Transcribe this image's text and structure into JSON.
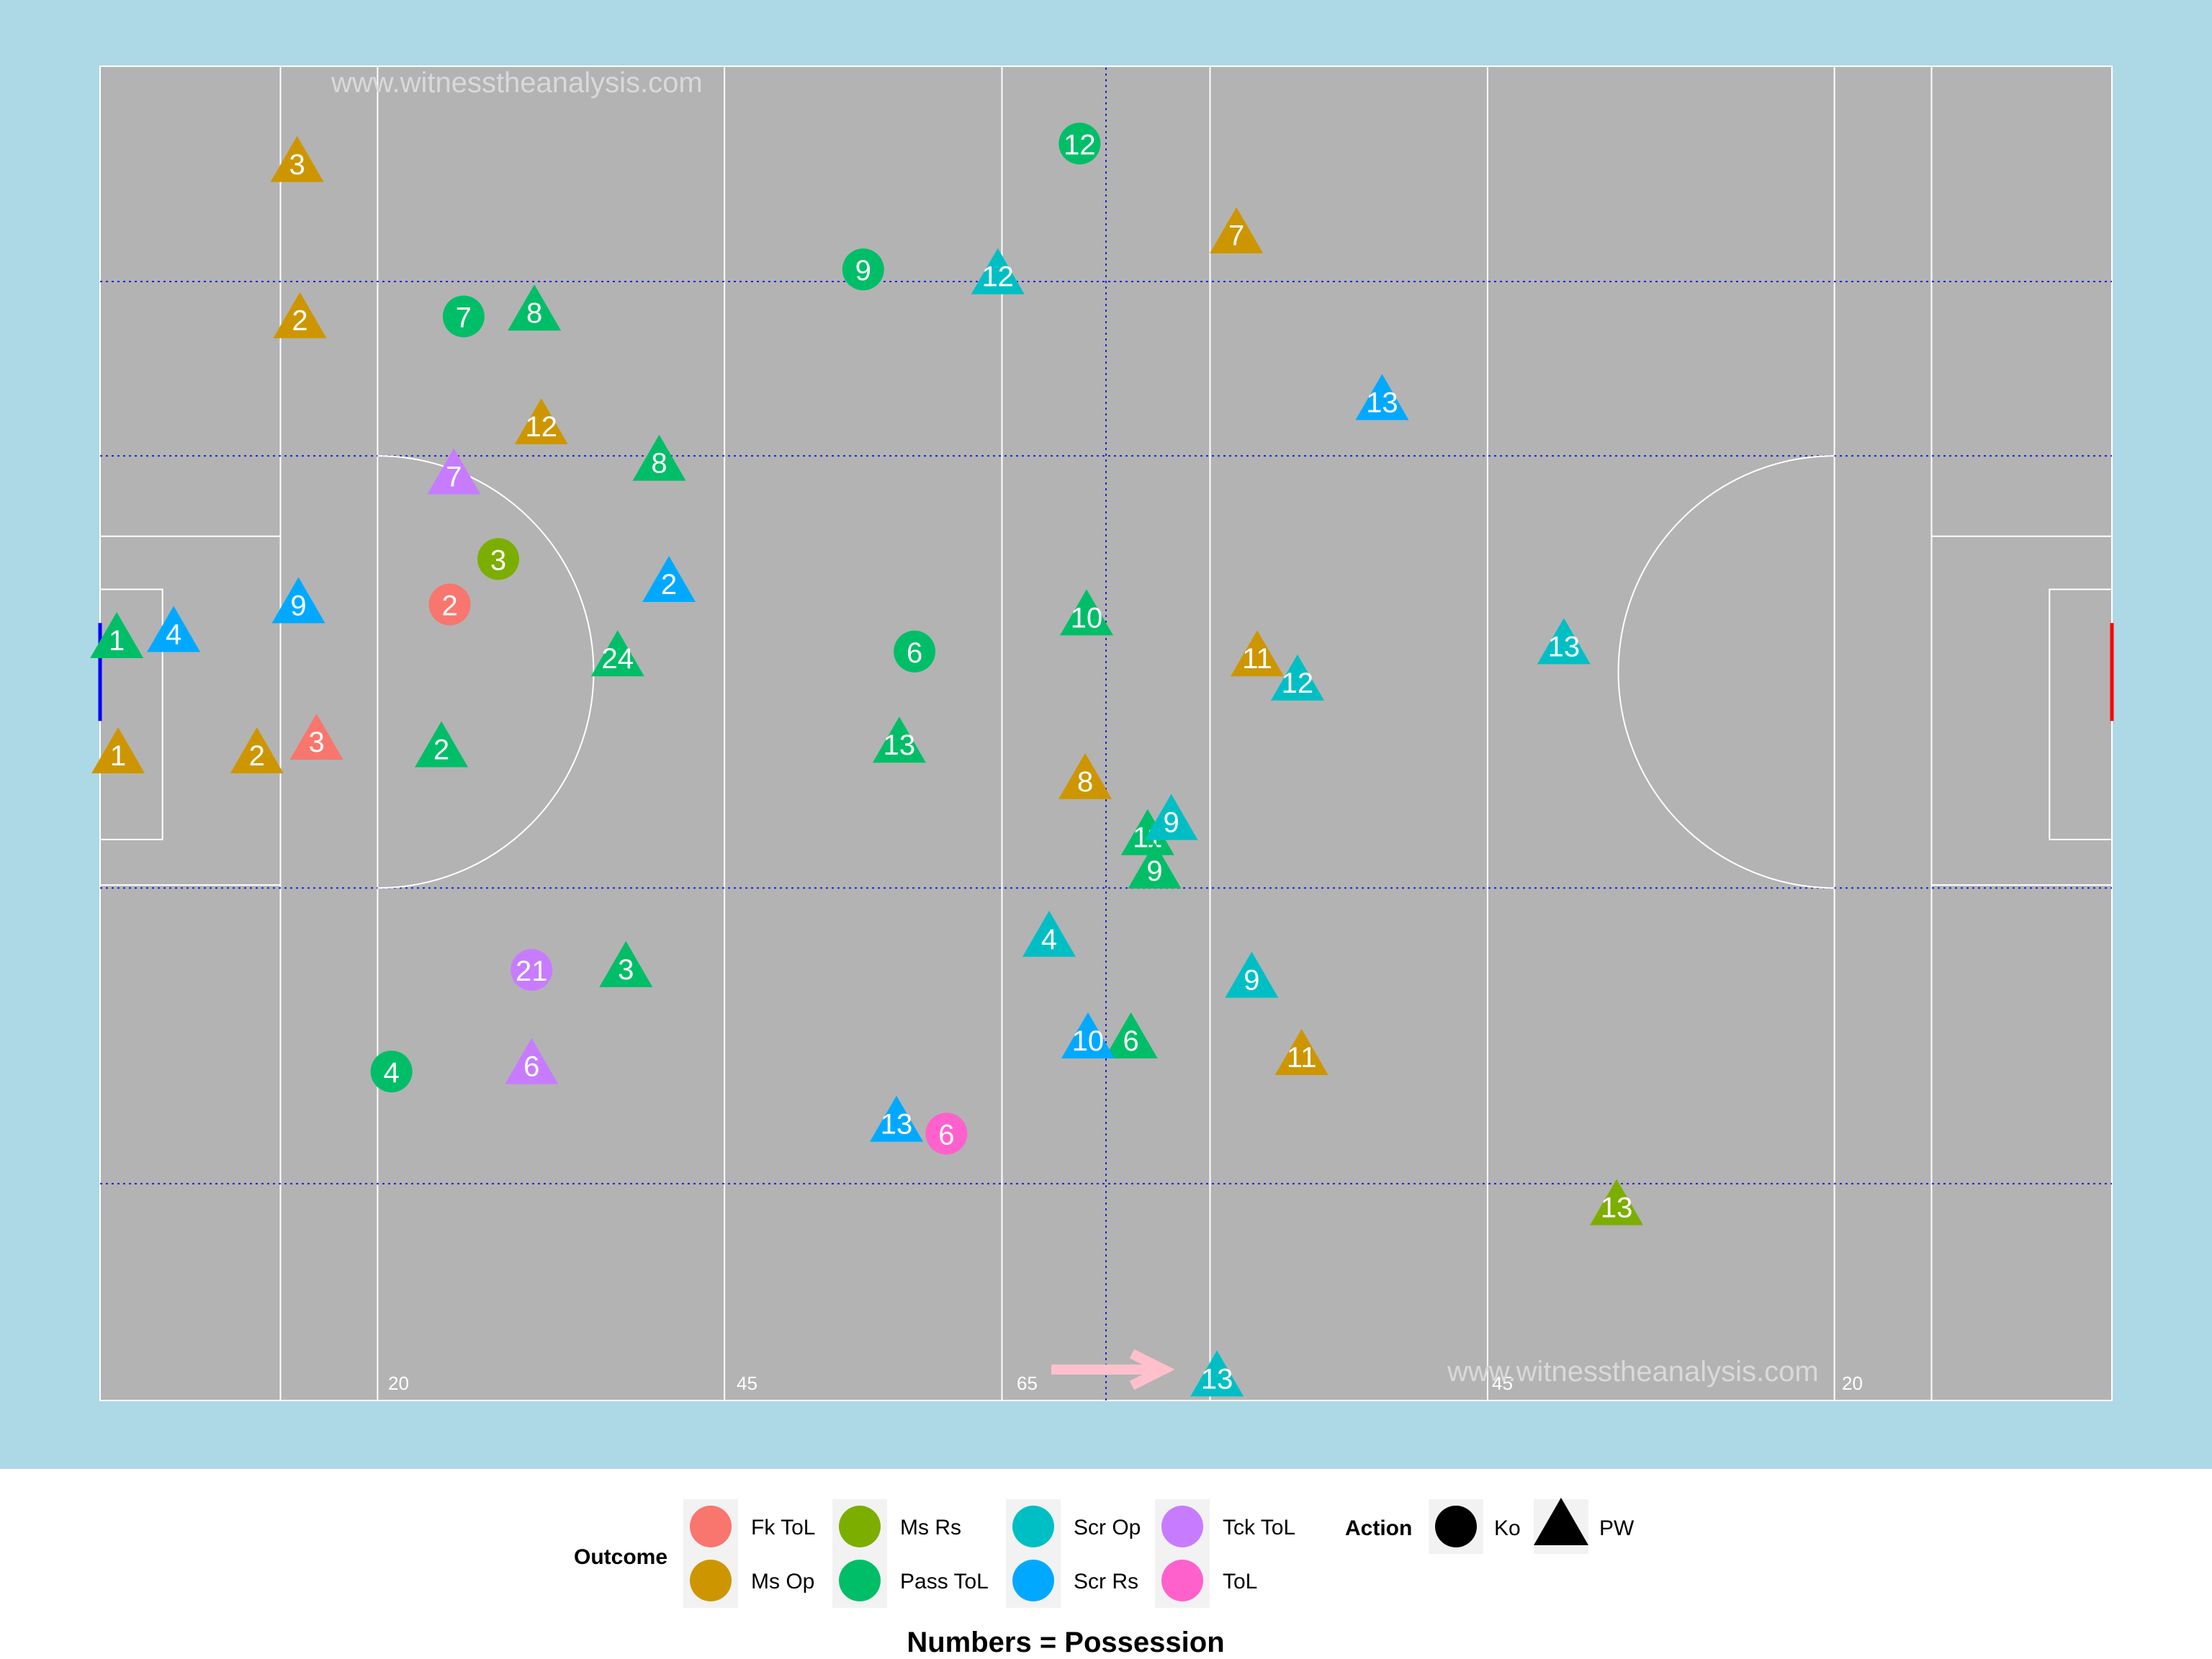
{
  "watermark_text": "www.witnesstheanalysis.com",
  "pitch_labels": [
    "20",
    "45",
    "65",
    "45",
    "20"
  ],
  "chart_data": {
    "type": "scatter",
    "title": "",
    "xlabel": "",
    "ylabel": "",
    "caption": "Numbers = Possession",
    "xlim": [
      0,
      145
    ],
    "ylim": [
      0,
      88
    ],
    "grid": false,
    "legend": {
      "placement": "bottom",
      "outcome_title": "Outcome",
      "outcome": [
        {
          "label": "Fk ToL",
          "color": "#F8766D"
        },
        {
          "label": "Ms Op",
          "color": "#CD9600"
        },
        {
          "label": "Ms Rs",
          "color": "#7CAE00"
        },
        {
          "label": "Pass ToL",
          "color": "#00BE67"
        },
        {
          "label": "Scr Op",
          "color": "#00BFC4"
        },
        {
          "label": "Scr Rs",
          "color": "#00A9FF"
        },
        {
          "label": "Tck ToL",
          "color": "#C77CFF"
        },
        {
          "label": "ToL",
          "color": "#FF61CC"
        }
      ],
      "action_title": "Action",
      "action": [
        {
          "label": "Ko",
          "shape": "circle"
        },
        {
          "label": "PW",
          "shape": "triangle"
        }
      ]
    },
    "points": [
      {
        "x": 14.2,
        "y": 81.6,
        "outcome": "Ms Op",
        "action": "PW",
        "possession": 3
      },
      {
        "x": 14.4,
        "y": 71.3,
        "outcome": "Ms Op",
        "action": "PW",
        "possession": 2
      },
      {
        "x": 31.8,
        "y": 64.3,
        "outcome": "Ms Op",
        "action": "PW",
        "possession": 12
      },
      {
        "x": 1.3,
        "y": 42.6,
        "outcome": "Ms Op",
        "action": "PW",
        "possession": 1
      },
      {
        "x": 11.3,
        "y": 42.6,
        "outcome": "Ms Op",
        "action": "PW",
        "possession": 2
      },
      {
        "x": 81.9,
        "y": 76.9,
        "outcome": "Ms Op",
        "action": "PW",
        "possession": 7
      },
      {
        "x": 83.4,
        "y": 49.0,
        "outcome": "Ms Op",
        "action": "PW",
        "possession": 11
      },
      {
        "x": 71.0,
        "y": 40.9,
        "outcome": "Ms Op",
        "action": "PW",
        "possession": 8
      },
      {
        "x": 86.6,
        "y": 22.7,
        "outcome": "Ms Op",
        "action": "PW",
        "possession": 11
      },
      {
        "x": 15.6,
        "y": 43.5,
        "outcome": "Fk ToL",
        "action": "PW",
        "possession": 3
      },
      {
        "x": 25.2,
        "y": 52.5,
        "outcome": "Fk ToL",
        "action": "Ko",
        "possession": 2
      },
      {
        "x": 28.7,
        "y": 55.5,
        "outcome": "Ms Rs",
        "action": "Ko",
        "possession": 3
      },
      {
        "x": 109.3,
        "y": 12.8,
        "outcome": "Ms Rs",
        "action": "PW",
        "possession": 13
      },
      {
        "x": 70.6,
        "y": 82.9,
        "outcome": "Pass ToL",
        "action": "Ko",
        "possession": 12
      },
      {
        "x": 55.0,
        "y": 74.6,
        "outcome": "Pass ToL",
        "action": "Ko",
        "possession": 9
      },
      {
        "x": 26.2,
        "y": 71.5,
        "outcome": "Pass ToL",
        "action": "Ko",
        "possession": 7
      },
      {
        "x": 31.3,
        "y": 71.8,
        "outcome": "Pass ToL",
        "action": "PW",
        "possession": 8
      },
      {
        "x": 40.3,
        "y": 61.9,
        "outcome": "Pass ToL",
        "action": "PW",
        "possession": 8
      },
      {
        "x": 1.2,
        "y": 50.2,
        "outcome": "Pass ToL",
        "action": "PW",
        "possession": 1
      },
      {
        "x": 37.3,
        "y": 49.0,
        "outcome": "Pass ToL",
        "action": "PW",
        "possession": 24
      },
      {
        "x": 58.7,
        "y": 49.4,
        "outcome": "Pass ToL",
        "action": "Ko",
        "possession": 6
      },
      {
        "x": 71.1,
        "y": 51.7,
        "outcome": "Pass ToL",
        "action": "PW",
        "possession": 10
      },
      {
        "x": 24.6,
        "y": 43.0,
        "outcome": "Pass ToL",
        "action": "PW",
        "possession": 2
      },
      {
        "x": 57.6,
        "y": 43.3,
        "outcome": "Pass ToL",
        "action": "PW",
        "possession": 13
      },
      {
        "x": 75.5,
        "y": 37.2,
        "outcome": "Pass ToL",
        "action": "PW",
        "possession": 11
      },
      {
        "x": 76.0,
        "y": 35.0,
        "outcome": "Pass ToL",
        "action": "PW",
        "possession": 9
      },
      {
        "x": 37.9,
        "y": 28.5,
        "outcome": "Pass ToL",
        "action": "PW",
        "possession": 3
      },
      {
        "x": 21.0,
        "y": 21.7,
        "outcome": "Pass ToL",
        "action": "Ko",
        "possession": 4
      },
      {
        "x": 74.3,
        "y": 23.8,
        "outcome": "Pass ToL",
        "action": "PW",
        "possession": 6
      },
      {
        "x": 64.7,
        "y": 74.2,
        "outcome": "Scr Op",
        "action": "PW",
        "possession": 12
      },
      {
        "x": 105.5,
        "y": 49.8,
        "outcome": "Scr Op",
        "action": "PW",
        "possession": 13
      },
      {
        "x": 86.3,
        "y": 47.4,
        "outcome": "Scr Op",
        "action": "PW",
        "possession": 12
      },
      {
        "x": 77.2,
        "y": 38.2,
        "outcome": "Scr Op",
        "action": "PW",
        "possession": 9
      },
      {
        "x": 68.4,
        "y": 30.5,
        "outcome": "Scr Op",
        "action": "PW",
        "possession": 4
      },
      {
        "x": 83.0,
        "y": 27.8,
        "outcome": "Scr Op",
        "action": "PW",
        "possession": 9
      },
      {
        "x": 80.5,
        "y": 1.5,
        "outcome": "Scr Op",
        "action": "PW",
        "possession": 13
      },
      {
        "x": 92.4,
        "y": 65.9,
        "outcome": "Scr Rs",
        "action": "PW",
        "possession": 13
      },
      {
        "x": 5.3,
        "y": 50.6,
        "outcome": "Scr Rs",
        "action": "PW",
        "possession": 4
      },
      {
        "x": 14.3,
        "y": 52.5,
        "outcome": "Scr Rs",
        "action": "PW",
        "possession": 9
      },
      {
        "x": 41.0,
        "y": 53.9,
        "outcome": "Scr Rs",
        "action": "PW",
        "possession": 2
      },
      {
        "x": 71.2,
        "y": 23.8,
        "outcome": "Scr Rs",
        "action": "PW",
        "possession": 10
      },
      {
        "x": 57.4,
        "y": 18.3,
        "outcome": "Scr Rs",
        "action": "PW",
        "possession": 13
      },
      {
        "x": 25.5,
        "y": 61.0,
        "outcome": "Tck ToL",
        "action": "PW",
        "possession": 7
      },
      {
        "x": 31.1,
        "y": 28.4,
        "outcome": "Tck ToL",
        "action": "Ko",
        "possession": 21
      },
      {
        "x": 31.1,
        "y": 22.1,
        "outcome": "Tck ToL",
        "action": "PW",
        "possession": 6
      },
      {
        "x": 61.0,
        "y": 17.6,
        "outcome": "ToL",
        "action": "Ko",
        "possession": 6
      }
    ]
  }
}
